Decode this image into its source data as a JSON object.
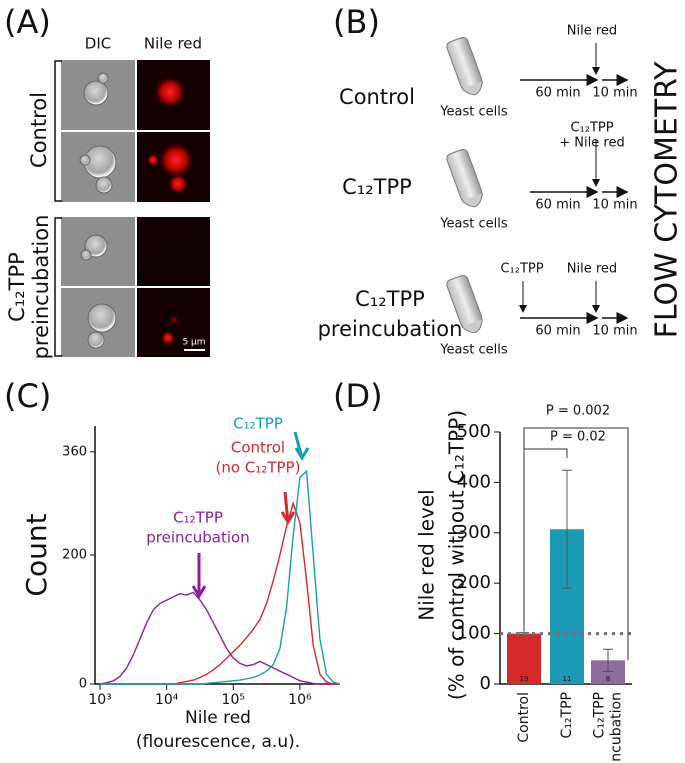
{
  "panel_a": {
    "label": "(A)",
    "columns": [
      "DIC",
      "Nile red"
    ],
    "groups": [
      [
        "Control"
      ],
      [
        "C₁₂TPP",
        "preincubation"
      ]
    ],
    "scale_bar": "5 μm"
  },
  "panel_b": {
    "label": "(B)",
    "readout": "FLOW CYTOMETRY",
    "rows": [
      {
        "name": [
          "Control"
        ],
        "sample": "Yeast cells",
        "step1": "60 min",
        "step2": "10 min",
        "addition_60": [
          "Nile red"
        ]
      },
      {
        "name": [
          "C₁₂TPP"
        ],
        "sample": "Yeast cells",
        "step1": "60 min",
        "step2": "10 min",
        "addition_60": [
          "C₁₂TPP",
          "+ Nile red"
        ]
      },
      {
        "name": [
          "C₁₂TPP",
          "preincubation"
        ],
        "sample": "Yeast cells",
        "step1": "60 min",
        "step2": "10 min",
        "addition_0": [
          "C₁₂TPP"
        ],
        "addition_60": [
          "Nile red"
        ]
      }
    ]
  },
  "chart_data": [
    {
      "type": "line",
      "title": "(C)",
      "x_label": [
        "Nile red",
        "(flourescence, a.u)."
      ],
      "y_label": "Count",
      "log_x": true,
      "xlim": [
        840,
        4000000
      ],
      "xticks": [
        {
          "value": 1000,
          "label": "10³"
        },
        {
          "value": 10000,
          "label": "10⁴"
        },
        {
          "value": 100000,
          "label": "10⁵"
        },
        {
          "value": 1000000,
          "label": "10⁶"
        }
      ],
      "ylim": [
        0,
        400
      ],
      "yticks": [
        0,
        200,
        360
      ],
      "x": [
        1000,
        1259,
        1585,
        1995,
        2512,
        3162,
        3981,
        5012,
        6310,
        7943,
        10000,
        12589,
        15849,
        19953,
        25119,
        31623,
        39811,
        50119,
        63096,
        79433,
        100000,
        125893,
        158489,
        199526,
        251189,
        316228,
        398107,
        501187,
        630957,
        794328,
        1000000,
        1258925,
        1584893,
        1995262,
        2511886,
        3162278,
        3981072
      ],
      "series": [
        {
          "name": [
            "C₁₂TPP",
            "preincubation"
          ],
          "color": "#8b1f9a",
          "values": [
            0,
            2,
            5,
            12,
            25,
            45,
            70,
            95,
            115,
            125,
            130,
            135,
            140,
            138,
            142,
            130,
            115,
            95,
            75,
            55,
            40,
            32,
            28,
            30,
            35,
            30,
            25,
            20,
            15,
            10,
            5,
            3,
            1,
            0,
            0,
            0,
            0
          ]
        },
        {
          "name": [
            "Control",
            "(no C₁₂TPP)"
          ],
          "color": "#d8262b",
          "values": [
            0,
            0,
            0,
            0,
            0,
            0,
            0,
            0,
            0,
            0,
            0,
            0,
            2,
            4,
            6,
            10,
            15,
            22,
            30,
            40,
            50,
            60,
            72,
            85,
            100,
            125,
            160,
            200,
            245,
            280,
            250,
            160,
            60,
            15,
            3,
            0,
            0
          ]
        },
        {
          "name": [
            "C₁₂TPP"
          ],
          "color": "#13a0b4",
          "values": [
            0,
            0,
            0,
            0,
            0,
            0,
            0,
            0,
            0,
            0,
            0,
            0,
            0,
            0,
            0,
            0,
            1,
            2,
            3,
            4,
            5,
            6,
            8,
            10,
            14,
            20,
            30,
            55,
            120,
            230,
            320,
            330,
            200,
            70,
            15,
            3,
            0
          ]
        }
      ]
    },
    {
      "type": "bar",
      "title": "(D)",
      "y_label": [
        "Nile red level",
        "(% of control without C₁₂TPP)"
      ],
      "categories": [
        [
          "Control"
        ],
        [
          "C₁₂TPP"
        ],
        [
          "C₁₂TPP",
          "preincubation"
        ]
      ],
      "values": [
        100,
        307,
        47
      ],
      "errors": [
        2,
        117,
        22
      ],
      "n_labels": [
        "19",
        "11",
        "8"
      ],
      "colors": [
        "#d42a2a",
        "#1a9ab5",
        "#8c6c9c"
      ],
      "ylim": [
        0,
        500
      ],
      "yticks": [
        0,
        100,
        200,
        300,
        400,
        500
      ],
      "reference_line": 100,
      "significance": [
        "P = 0.02",
        "P = 0.002"
      ]
    }
  ]
}
